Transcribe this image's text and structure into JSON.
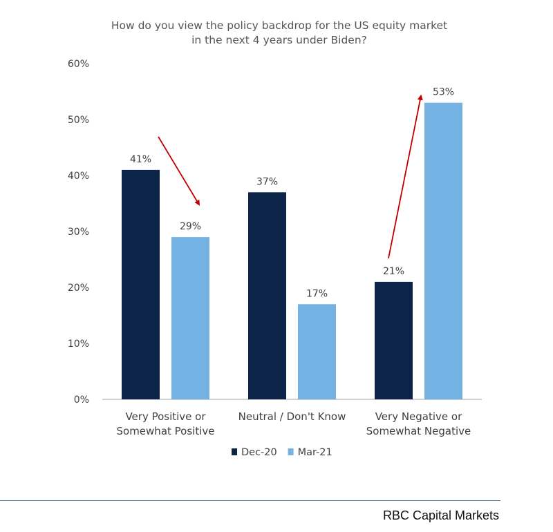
{
  "chart_data": {
    "type": "bar",
    "title_lines": [
      "How do you view the policy backdrop for the US equity market",
      "in the next 4 years under Biden?"
    ],
    "categories": [
      [
        "Very Positive or",
        "Somewhat Positive"
      ],
      [
        "Neutral / Don't Know"
      ],
      [
        "Very Negative or",
        "Somewhat Negative"
      ]
    ],
    "series": [
      {
        "name": "Dec-20",
        "values": [
          41,
          37,
          21
        ],
        "color": "#0d2449"
      },
      {
        "name": "Mar-21",
        "values": [
          29,
          17,
          53
        ],
        "color": "#74b2e4"
      }
    ],
    "value_suffix": "%",
    "ylim": [
      0,
      60
    ],
    "yticks": [
      0,
      10,
      20,
      30,
      40,
      50,
      60
    ],
    "ytick_labels": [
      "0%",
      "10%",
      "20%",
      "30%",
      "40%",
      "50%",
      "60%"
    ],
    "grid": false,
    "legend_position": "bottom",
    "annotations": [
      {
        "type": "arrow",
        "direction": "down",
        "from_category": 0,
        "color": "#c00000"
      },
      {
        "type": "arrow",
        "direction": "up",
        "from_category": 2,
        "color": "#c00000"
      }
    ],
    "colors": {
      "axis": "#bfbfbf",
      "text": "#404040",
      "arrow": "#c00000"
    }
  },
  "footer": {
    "source": "RBC Capital Markets"
  }
}
